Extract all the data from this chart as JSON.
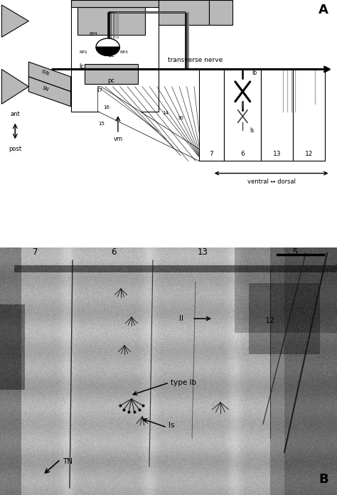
{
  "fig_bg": "#ffffff",
  "gc": "#b8b8b8",
  "black": "#000000",
  "white": "#ffffff",
  "dark_gray": "#606060",
  "mid_gray": "#909090",
  "light_gray": "#d0d0d0"
}
